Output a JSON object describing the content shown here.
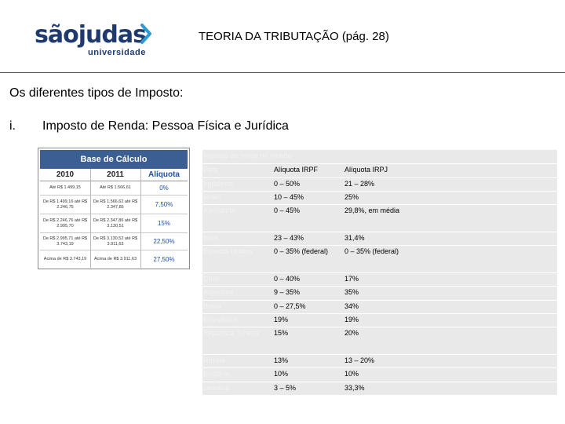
{
  "logo": {
    "word": "sãojudas",
    "sub": "universidade",
    "chevron_color": "#2e9bd6",
    "brand_color": "#1f3a6e"
  },
  "header": {
    "title": "TEORIA DA TRIBUTAÇÃO (pág. 28)"
  },
  "subtitle": "Os diferentes tipos de Imposto:",
  "item": {
    "number": "i.",
    "text": "Imposto de Renda: Pessoa Física e Jurídica"
  },
  "base_calculo": {
    "title": "Base de Cálculo",
    "columns": [
      "2010",
      "2011",
      "Alíquota"
    ],
    "rows": [
      {
        "y2010": "Até R$ 1.499,15",
        "y2011": "Até R$ 1.566,61",
        "rate": "0%"
      },
      {
        "y2010": "De R$ 1.499,16 até R$ 2.246,75",
        "y2011": "De R$ 1.566,62 até R$ 2.347,85",
        "rate": "7,50%"
      },
      {
        "y2010": "De R$ 2.246,76 até R$ 2.995,70",
        "y2011": "De R$ 2.347,86 até R$ 3.130,51",
        "rate": "15%"
      },
      {
        "y2010": "De R$ 2.995,71 até R$ 3.743,19",
        "y2011": "De R$ 3.130,52 até R$ 3.911,63",
        "rate": "22,50%"
      },
      {
        "y2010": "Acima de R$ 3.743,19",
        "y2011": "Acima de R$ 3.911,63",
        "rate": "27,50%"
      }
    ]
  },
  "tax_table": {
    "caption": "Imposto de renda no mundo",
    "headers": [
      "País",
      "Alíquota IRPF",
      "Alíquota IRPJ"
    ],
    "rows": [
      [
        "Inglaterra",
        "0 – 50%",
        "21 – 28%"
      ],
      [
        "Israel",
        "10 – 45%",
        "25%"
      ],
      [
        "Alemanha",
        "0 – 45%",
        "29,8%, em média"
      ],
      [
        "Itália",
        "23 – 43%",
        "31,4%"
      ],
      [
        "Estados Unidos",
        "0 – 35% (federal)",
        "0 – 35% (federal)"
      ],
      [
        "Chile",
        "0 – 40%",
        "17%"
      ],
      [
        "Argentina",
        "9 – 35%",
        "35%"
      ],
      [
        "Brasil",
        "0 – 27,5%",
        "34%"
      ],
      [
        "Eslováquia",
        "19%",
        "19%"
      ],
      [
        "República Tcheca",
        "15%",
        "20%"
      ],
      [
        "Rússia",
        "13%",
        "13 – 20%"
      ],
      [
        "Bulgária",
        "10%",
        "10%"
      ],
      [
        "Jamaica",
        "3 – 5%",
        "33,3%"
      ]
    ]
  }
}
